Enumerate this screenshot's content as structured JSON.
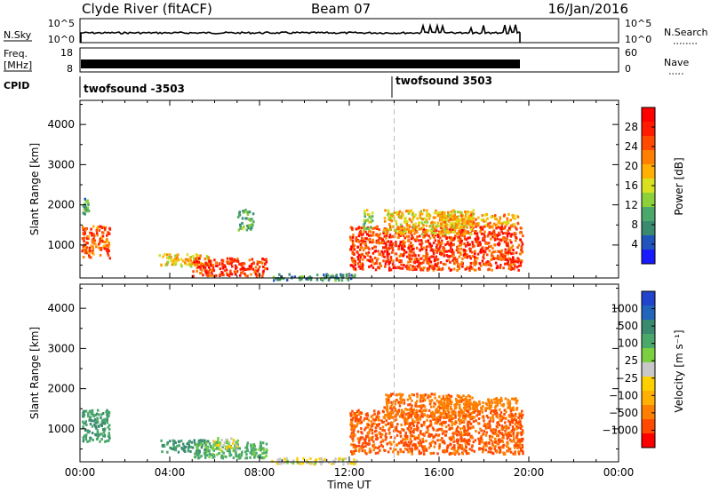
{
  "header": {
    "site": "Clyde River (fitACF)",
    "beam": "Beam 07",
    "date": "16/Jan/2016"
  },
  "top_panels": {
    "nsky_label": "N.Sky",
    "nsky_ticks": [
      "10^5",
      "10^0"
    ],
    "nsearch_label": "N.Search",
    "nsearch_ticks": [
      "10^5",
      "10^0"
    ],
    "freq_label_1": "Freq.",
    "freq_label_2": "[MHz]",
    "freq_ticks": [
      "18",
      "8"
    ],
    "nave_label": "Nave",
    "nave_ticks": [
      "60",
      "0"
    ],
    "cpid_label": "CPID",
    "cpid_segments": [
      {
        "label": "twofsound -3503",
        "start_hour": 0
      },
      {
        "label": "twofsound 3503",
        "start_hour": 14
      }
    ]
  },
  "chart_data": [
    {
      "type": "heatmap",
      "title": "",
      "xlabel": "",
      "ylabel": "Slant Range [km]",
      "xlim": [
        0,
        24
      ],
      "ylim": [
        180,
        4600
      ],
      "x_ticks": [
        "00:00",
        "04:00",
        "08:00",
        "12:00",
        "16:00",
        "20:00",
        "00:00"
      ],
      "y_ticks": [
        1000,
        2000,
        3000,
        4000
      ],
      "colorbar_label": "Power [dB]",
      "colorbar_ticks": [
        4,
        8,
        12,
        16,
        20,
        24,
        28
      ],
      "colorbar_range": [
        0,
        32
      ],
      "colorbar_colors": [
        "#1a1aff",
        "#2255bb",
        "#3a8a70",
        "#4aa86a",
        "#8dd13a",
        "#d8e020",
        "#ffb000",
        "#ff8000",
        "#ff4a00",
        "#ff1a00",
        "#ff0000"
      ],
      "regions": [
        {
          "t0": 0.05,
          "t1": 1.3,
          "r0": 700,
          "r1": 1500,
          "value": 24
        },
        {
          "t0": 0.1,
          "t1": 0.35,
          "r0": 1800,
          "r1": 2200,
          "value": 10
        },
        {
          "t0": 3.5,
          "t1": 5.8,
          "r0": 500,
          "r1": 800,
          "value": 18
        },
        {
          "t0": 5.0,
          "t1": 8.3,
          "r0": 250,
          "r1": 700,
          "value": 26
        },
        {
          "t0": 7.0,
          "t1": 7.7,
          "r0": 1400,
          "r1": 1900,
          "value": 10
        },
        {
          "t0": 8.5,
          "t1": 12.3,
          "r0": 150,
          "r1": 300,
          "value": 8
        },
        {
          "t0": 12.0,
          "t1": 19.7,
          "r0": 400,
          "r1": 1500,
          "value": 26
        },
        {
          "t0": 13.5,
          "t1": 17.5,
          "r0": 1300,
          "r1": 1900,
          "value": 18
        },
        {
          "t0": 12.6,
          "t1": 13.0,
          "r0": 1400,
          "r1": 1900,
          "value": 14
        },
        {
          "t0": 16.0,
          "t1": 19.5,
          "r0": 1500,
          "r1": 1800,
          "value": 20
        }
      ]
    },
    {
      "type": "heatmap",
      "title": "",
      "xlabel": "Time UT",
      "ylabel": "Slant Range [km]",
      "xlim": [
        0,
        24
      ],
      "ylim": [
        180,
        4600
      ],
      "x_ticks": [
        "00:00",
        "04:00",
        "08:00",
        "12:00",
        "16:00",
        "20:00",
        "00:00"
      ],
      "y_ticks": [
        1000,
        2000,
        3000,
        4000
      ],
      "colorbar_label": "Velocity [m s⁻¹]",
      "colorbar_tick_labels": [
        "1000",
        "500",
        "100",
        "25",
        "−25",
        "−100",
        "−500",
        "−1000"
      ],
      "colorbar_colors": [
        "#2244cc",
        "#2266bb",
        "#3a8a70",
        "#4aa86a",
        "#7ad040",
        "#c8c8c8",
        "#ffd000",
        "#ffb000",
        "#ff8000",
        "#ff4a00",
        "#ff0000"
      ],
      "regions": [
        {
          "t0": 0.05,
          "t1": 1.3,
          "r0": 700,
          "r1": 1500,
          "value": 80
        },
        {
          "t0": 3.5,
          "t1": 5.8,
          "r0": 450,
          "r1": 750,
          "value": 100
        },
        {
          "t0": 5.0,
          "t1": 8.3,
          "r0": 300,
          "r1": 700,
          "value": 60
        },
        {
          "t0": 5.8,
          "t1": 7.0,
          "r0": 500,
          "r1": 800,
          "value": 0
        },
        {
          "t0": 8.5,
          "t1": 12.3,
          "r0": 150,
          "r1": 300,
          "value": -10
        },
        {
          "t0": 12.0,
          "t1": 19.7,
          "r0": 400,
          "r1": 1500,
          "value": -400
        },
        {
          "t0": 13.5,
          "t1": 17.5,
          "r0": 1300,
          "r1": 1900,
          "value": -300
        },
        {
          "t0": 16.0,
          "t1": 19.5,
          "r0": 1500,
          "r1": 1800,
          "value": -250
        }
      ]
    }
  ]
}
